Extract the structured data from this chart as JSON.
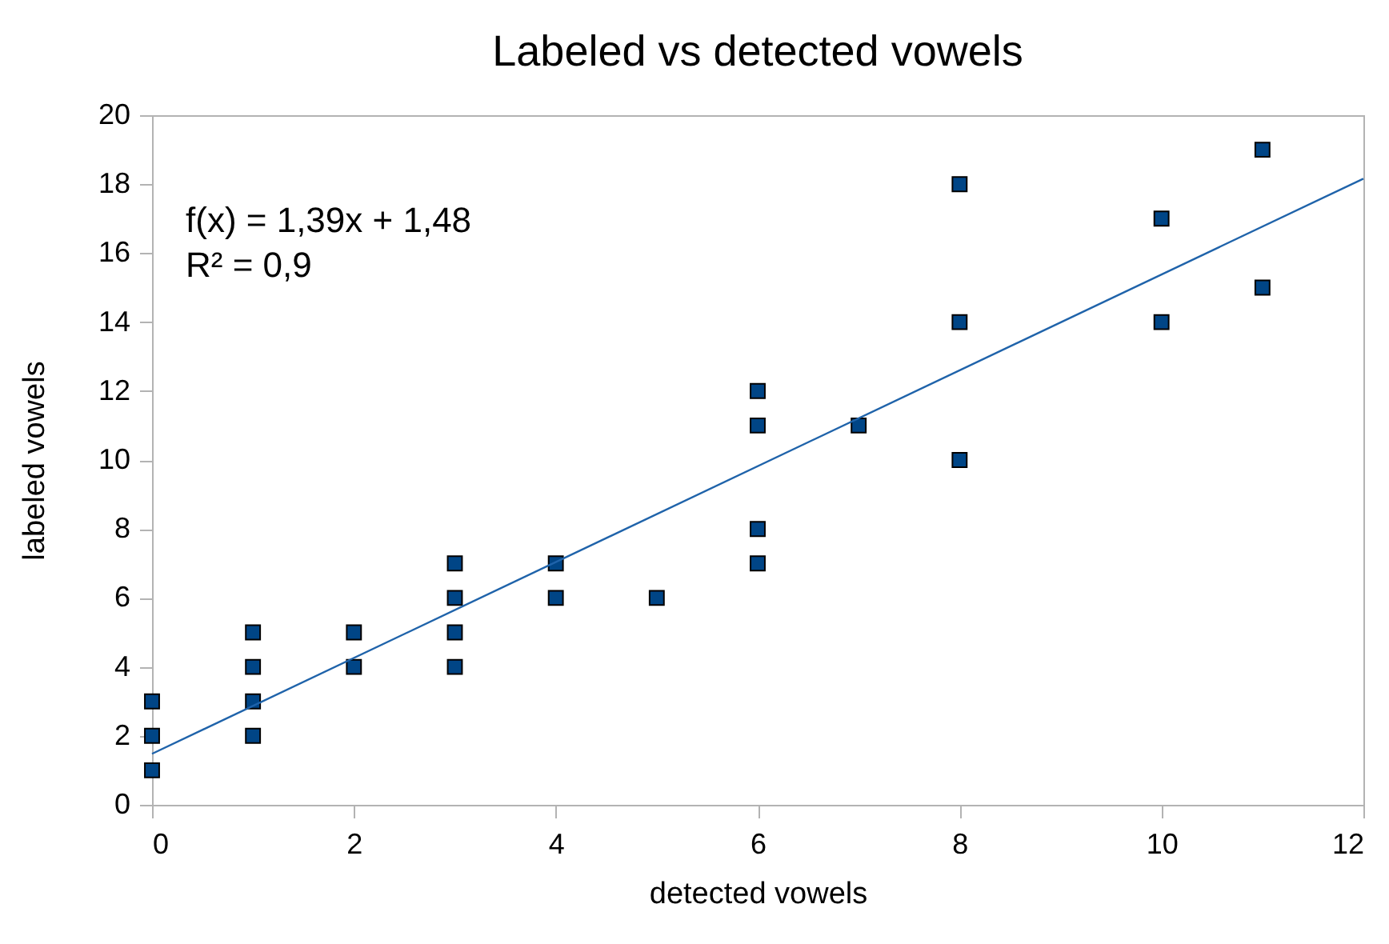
{
  "chart_data": {
    "type": "scatter",
    "title": "Labeled vs detected vowels",
    "xlabel": "detected vowels",
    "ylabel": "labeled vowels",
    "xlim": [
      0,
      12
    ],
    "ylim": [
      0,
      20
    ],
    "xticks": [
      0,
      2,
      4,
      6,
      8,
      10,
      12
    ],
    "yticks": [
      0,
      2,
      4,
      6,
      8,
      10,
      12,
      14,
      16,
      18,
      20
    ],
    "grid": false,
    "annotations": [
      "f(x) = 1,39x + 1,48",
      "R² = 0,9"
    ],
    "series": [
      {
        "color": "#004586",
        "marker": "square",
        "x": [
          0,
          0,
          0,
          1,
          1,
          1,
          1,
          2,
          2,
          3,
          3,
          3,
          3,
          4,
          4,
          5,
          6,
          6,
          6,
          6,
          7,
          8,
          8,
          8,
          10,
          10,
          11,
          11
        ],
        "values": [
          1,
          2,
          3,
          2,
          3,
          4,
          5,
          4,
          5,
          4,
          5,
          6,
          7,
          6,
          7,
          6,
          7,
          8,
          11,
          12,
          11,
          10,
          14,
          18,
          14,
          17,
          15,
          19
        ]
      },
      {
        "type": "line",
        "color": "#1f63aa",
        "x": [
          0,
          12
        ],
        "values": [
          1.48,
          18.16
        ]
      }
    ]
  }
}
